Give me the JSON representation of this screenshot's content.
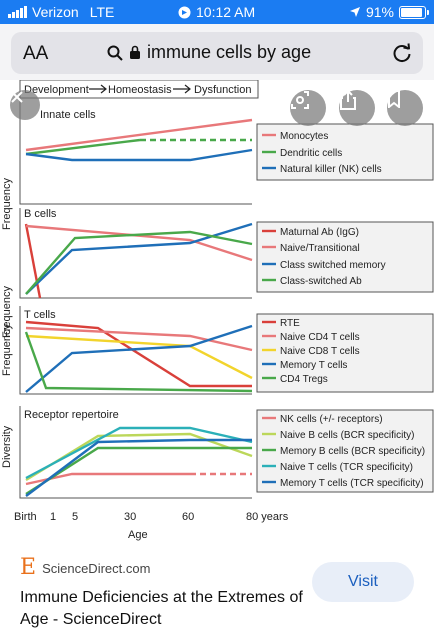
{
  "status_bar": {
    "carrier": "Verizon",
    "network": "LTE",
    "time": "10:12 AM",
    "battery": "91%",
    "battery_level": 0.91
  },
  "address_bar": {
    "text_size_label": "AA",
    "query": "immune cells by age"
  },
  "figure": {
    "header_steps": [
      "Development",
      "Homeostasis",
      "Dysfunction"
    ],
    "x_axis_ticks": [
      "Birth",
      "1",
      "5",
      "30",
      "60",
      "80 years"
    ],
    "x_axis_label": "Age",
    "panels": [
      {
        "title": "Innate cells",
        "ylabel": "Frequency",
        "legend": [
          "Monocytes",
          "Dendritic cells",
          "Natural killer (NK) cells"
        ]
      },
      {
        "title": "B cells",
        "ylabel": "Frequency",
        "legend": [
          "Maturnal Ab (IgG)",
          "Naive/Transitional",
          "Class switched memory",
          "Class-switched Ab"
        ]
      },
      {
        "title": "T cells",
        "ylabel": "Frequency",
        "legend": [
          "RTE",
          "Naive CD4 T cells",
          "Naive CD8 T cells",
          "Memory T cells",
          "CD4 Tregs"
        ]
      },
      {
        "title": "Receptor repertoire",
        "ylabel": "Diversity",
        "legend": [
          "NK cells (+/- receptors)",
          "Naive B cells (BCR specificity)",
          "Memory B cells (BCR specificity)",
          "Naive T cells (TCR specificity)",
          "Memory T cells (TCR specificity)"
        ]
      }
    ],
    "colors": {
      "red": "#d9403a",
      "pink": "#e8787a",
      "green": "#49a84a",
      "blue": "#1f6fb8",
      "yellow": "#f2d42c",
      "lime": "#bcd75a",
      "teal": "#2bb0b8"
    }
  },
  "overlay_buttons": [
    "close-icon",
    "visual-lookup-icon",
    "share-icon",
    "bookmark-icon"
  ],
  "result_card": {
    "source": "ScienceDirect.com",
    "title": "Immune Deficiencies at the Extremes of Age - ScienceDirect",
    "visit_label": "Visit"
  }
}
